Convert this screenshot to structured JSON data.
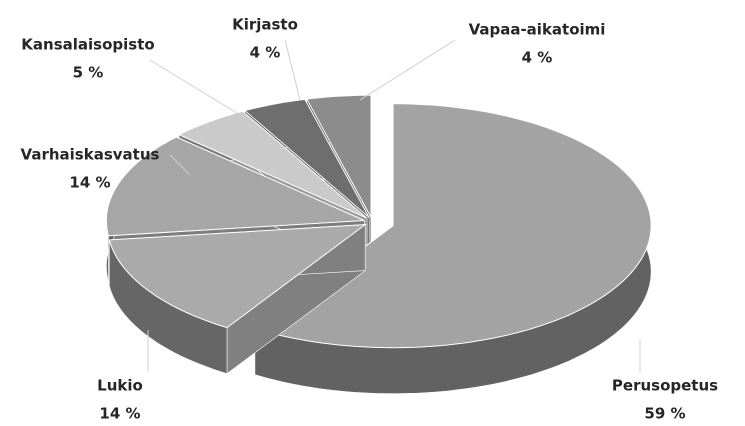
{
  "chart_data": {
    "type": "pie3d",
    "categories": [
      "Perusopetus",
      "Lukio",
      "Varhaiskasvatus",
      "Kansalaisopisto",
      "Kirjasto",
      "Vapaa-aikatoimi"
    ],
    "values": [
      59,
      14,
      14,
      5,
      4,
      4
    ],
    "value_labels": [
      "59 %",
      "14 %",
      "14 %",
      "5 %",
      "4 %",
      "4 %"
    ],
    "colors": [
      "#a3a3a3",
      "#aaaaaa",
      "#a6a6a6",
      "#cacaca",
      "#6e6e6e",
      "#8c8c8c"
    ]
  }
}
